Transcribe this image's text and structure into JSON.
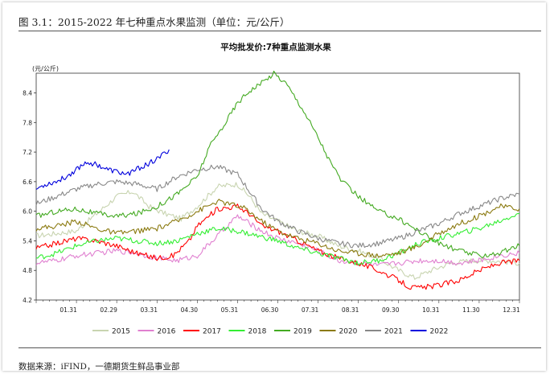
{
  "figure_caption": "图 3.1：2015-2022 年七种重点水果监测（单位：元/公斤）",
  "source_note": "数据来源：iFIND，一德期货生鲜品事业部",
  "chart_data": {
    "type": "line",
    "title": "平均批发价:7种重点监测水果",
    "ylabel": "(元/公斤)",
    "ylim": [
      4.2,
      8.8
    ],
    "yticks": [
      "4.2",
      "4.8",
      "5.4",
      "6.0",
      "6.6",
      "7.2",
      "7.8",
      "8.4"
    ],
    "xlabels": [
      "01.31",
      "02.29",
      "03.31",
      "04.30",
      "05.31",
      "06.30",
      "07.31",
      "08.31",
      "09.30",
      "10.31",
      "11.30",
      "12.31"
    ],
    "legend_position": "bottom",
    "series": [
      {
        "name": "2015",
        "color": "#c8d4b0",
        "points": [
          [
            0,
            5.5
          ],
          [
            0.5,
            5.55
          ],
          [
            1,
            5.6
          ],
          [
            1.5,
            5.95
          ],
          [
            2,
            6.3
          ],
          [
            2.4,
            6.4
          ],
          [
            2.8,
            6.1
          ],
          [
            3.2,
            5.95
          ],
          [
            3.6,
            5.85
          ],
          [
            4,
            6.1
          ],
          [
            4.5,
            6.5
          ],
          [
            5,
            6.55
          ],
          [
            5.3,
            6.3
          ],
          [
            5.6,
            5.95
          ],
          [
            6,
            5.8
          ],
          [
            6.5,
            5.6
          ],
          [
            7,
            5.5
          ],
          [
            7.5,
            5.3
          ],
          [
            8,
            5.2
          ],
          [
            8.5,
            5.05
          ],
          [
            9,
            4.8
          ],
          [
            9.4,
            4.65
          ],
          [
            9.8,
            4.8
          ],
          [
            10.3,
            4.95
          ],
          [
            10.8,
            5.0
          ],
          [
            11.3,
            5.0
          ],
          [
            12,
            4.95
          ]
        ]
      },
      {
        "name": "2016",
        "color": "#e080d0",
        "points": [
          [
            0,
            4.95
          ],
          [
            0.5,
            5.0
          ],
          [
            1,
            5.1
          ],
          [
            1.5,
            5.15
          ],
          [
            2,
            5.2
          ],
          [
            2.5,
            5.15
          ],
          [
            3,
            5.05
          ],
          [
            3.5,
            5.0
          ],
          [
            4,
            5.1
          ],
          [
            4.5,
            5.5
          ],
          [
            4.8,
            5.75
          ],
          [
            5,
            5.9
          ],
          [
            5.3,
            5.75
          ],
          [
            5.6,
            5.6
          ],
          [
            6,
            5.45
          ],
          [
            6.5,
            5.35
          ],
          [
            7,
            5.2
          ],
          [
            7.5,
            5.0
          ],
          [
            8,
            4.95
          ],
          [
            8.5,
            4.9
          ],
          [
            9,
            4.95
          ],
          [
            9.5,
            5.0
          ],
          [
            10,
            5.0
          ],
          [
            10.5,
            4.95
          ],
          [
            11,
            5.0
          ],
          [
            11.5,
            5.1
          ],
          [
            12,
            5.15
          ]
        ]
      },
      {
        "name": "2017",
        "color": "#ff0000",
        "points": [
          [
            0,
            5.25
          ],
          [
            0.5,
            5.35
          ],
          [
            1,
            5.45
          ],
          [
            1.5,
            5.4
          ],
          [
            2,
            5.3
          ],
          [
            2.5,
            5.15
          ],
          [
            3,
            5.05
          ],
          [
            3.4,
            5.1
          ],
          [
            3.8,
            5.4
          ],
          [
            4,
            5.7
          ],
          [
            4.5,
            6.05
          ],
          [
            5,
            6.1
          ],
          [
            5.3,
            5.95
          ],
          [
            5.6,
            5.7
          ],
          [
            6,
            5.6
          ],
          [
            6.5,
            5.4
          ],
          [
            7,
            5.2
          ],
          [
            7.5,
            5.05
          ],
          [
            8,
            4.95
          ],
          [
            8.5,
            4.8
          ],
          [
            9,
            4.6
          ],
          [
            9.3,
            4.45
          ],
          [
            9.6,
            4.45
          ],
          [
            10,
            4.5
          ],
          [
            10.5,
            4.6
          ],
          [
            11,
            4.8
          ],
          [
            11.5,
            4.95
          ],
          [
            12,
            5.0
          ]
        ]
      },
      {
        "name": "2018",
        "color": "#33ee33",
        "points": [
          [
            0,
            5.05
          ],
          [
            0.5,
            5.15
          ],
          [
            1,
            5.3
          ],
          [
            1.5,
            5.4
          ],
          [
            2,
            5.45
          ],
          [
            2.5,
            5.4
          ],
          [
            3,
            5.35
          ],
          [
            3.5,
            5.4
          ],
          [
            4,
            5.55
          ],
          [
            4.5,
            5.65
          ],
          [
            5,
            5.6
          ],
          [
            5.5,
            5.5
          ],
          [
            6,
            5.4
          ],
          [
            6.5,
            5.25
          ],
          [
            7,
            5.15
          ],
          [
            7.5,
            5.05
          ],
          [
            8,
            4.95
          ],
          [
            8.5,
            5.0
          ],
          [
            9,
            5.15
          ],
          [
            9.5,
            5.35
          ],
          [
            10,
            5.45
          ],
          [
            10.5,
            5.55
          ],
          [
            11,
            5.65
          ],
          [
            11.5,
            5.8
          ],
          [
            11.8,
            5.9
          ],
          [
            12,
            5.95
          ]
        ]
      },
      {
        "name": "2019",
        "color": "#44aa22",
        "points": [
          [
            0,
            5.9
          ],
          [
            0.5,
            6.0
          ],
          [
            1,
            6.05
          ],
          [
            1.5,
            5.95
          ],
          [
            2,
            5.9
          ],
          [
            2.5,
            5.95
          ],
          [
            3,
            6.1
          ],
          [
            3.5,
            6.35
          ],
          [
            4,
            6.7
          ],
          [
            4.3,
            7.3
          ],
          [
            4.7,
            7.8
          ],
          [
            5,
            8.2
          ],
          [
            5.3,
            8.45
          ],
          [
            5.6,
            8.6
          ],
          [
            5.9,
            8.8
          ],
          [
            6.2,
            8.6
          ],
          [
            6.6,
            8.1
          ],
          [
            7,
            7.5
          ],
          [
            7.3,
            7.0
          ],
          [
            7.6,
            6.6
          ],
          [
            8,
            6.3
          ],
          [
            8.5,
            6.0
          ],
          [
            9,
            5.85
          ],
          [
            9.3,
            5.7
          ],
          [
            9.6,
            5.55
          ],
          [
            10,
            5.35
          ],
          [
            10.5,
            5.2
          ],
          [
            11,
            5.1
          ],
          [
            11.5,
            5.15
          ],
          [
            12,
            5.3
          ]
        ]
      },
      {
        "name": "2020",
        "color": "#8b7a10",
        "points": [
          [
            0,
            5.65
          ],
          [
            0.5,
            5.7
          ],
          [
            1,
            5.8
          ],
          [
            1.5,
            5.65
          ],
          [
            2,
            5.55
          ],
          [
            2.5,
            5.6
          ],
          [
            3,
            5.65
          ],
          [
            3.5,
            5.8
          ],
          [
            4,
            6.0
          ],
          [
            4.5,
            6.2
          ],
          [
            4.8,
            6.15
          ],
          [
            5.2,
            6.05
          ],
          [
            5.6,
            5.8
          ],
          [
            6,
            5.6
          ],
          [
            6.5,
            5.45
          ],
          [
            7,
            5.35
          ],
          [
            7.5,
            5.2
          ],
          [
            8,
            5.15
          ],
          [
            8.5,
            5.1
          ],
          [
            9,
            5.15
          ],
          [
            9.5,
            5.3
          ],
          [
            10,
            5.55
          ],
          [
            10.5,
            5.75
          ],
          [
            11,
            5.9
          ],
          [
            11.5,
            6.1
          ],
          [
            12,
            6.05
          ]
        ]
      },
      {
        "name": "2021",
        "color": "#888888",
        "points": [
          [
            0,
            6.15
          ],
          [
            0.5,
            6.3
          ],
          [
            1,
            6.45
          ],
          [
            1.5,
            6.55
          ],
          [
            2,
            6.6
          ],
          [
            2.5,
            6.55
          ],
          [
            3,
            6.45
          ],
          [
            3.5,
            6.7
          ],
          [
            4,
            6.85
          ],
          [
            4.5,
            6.9
          ],
          [
            5,
            6.75
          ],
          [
            5.3,
            6.4
          ],
          [
            5.6,
            6.05
          ],
          [
            6,
            5.8
          ],
          [
            6.5,
            5.6
          ],
          [
            7,
            5.45
          ],
          [
            7.5,
            5.35
          ],
          [
            8,
            5.3
          ],
          [
            8.5,
            5.35
          ],
          [
            9,
            5.45
          ],
          [
            9.5,
            5.6
          ],
          [
            10,
            5.75
          ],
          [
            10.5,
            5.95
          ],
          [
            11,
            6.1
          ],
          [
            11.5,
            6.25
          ],
          [
            12,
            6.35
          ]
        ]
      },
      {
        "name": "2022",
        "color": "#0000dd",
        "points": [
          [
            0,
            6.45
          ],
          [
            0.25,
            6.55
          ],
          [
            0.5,
            6.6
          ],
          [
            0.75,
            6.7
          ],
          [
            1,
            6.85
          ],
          [
            1.25,
            7.0
          ],
          [
            1.5,
            6.95
          ],
          [
            1.75,
            6.85
          ],
          [
            2,
            6.8
          ],
          [
            2.25,
            6.75
          ],
          [
            2.5,
            6.85
          ],
          [
            2.75,
            6.95
          ],
          [
            3,
            7.05
          ],
          [
            3.15,
            7.15
          ],
          [
            3.3,
            7.25
          ]
        ]
      }
    ]
  }
}
